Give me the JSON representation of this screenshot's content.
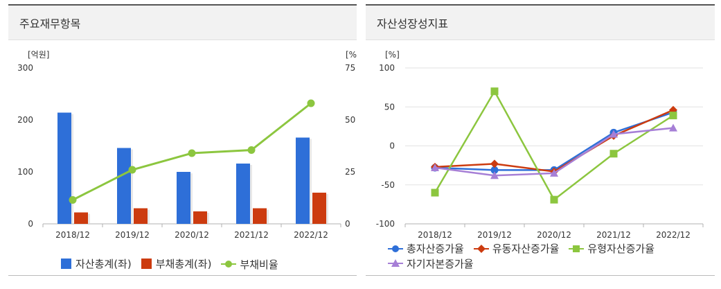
{
  "left_panel": {
    "title": "주요재무항목"
  },
  "right_panel": {
    "title": "자산성장성지표"
  },
  "chart_data": [
    {
      "type": "bar",
      "categories": [
        "2018/12",
        "2019/12",
        "2020/12",
        "2021/12",
        "2022/12"
      ],
      "y_left_unit": "[억원]",
      "y_right_unit": "[%]",
      "ylim_left": [
        0,
        300
      ],
      "ylim_right": [
        0,
        75
      ],
      "y_left_ticks": [
        "0",
        "100",
        "200",
        "300"
      ],
      "y_right_ticks": [
        "0",
        "25",
        "50",
        "75"
      ],
      "series": [
        {
          "name": "자산총계(좌)",
          "kind": "bar",
          "axis": "left",
          "color": "#2e6fd8",
          "values": [
            214,
            146,
            100,
            116,
            166
          ]
        },
        {
          "name": "부채총계(좌)",
          "kind": "bar",
          "axis": "left",
          "color": "#cc3b0f",
          "values": [
            22,
            30,
            24,
            30,
            60
          ]
        },
        {
          "name": "부채비율",
          "kind": "line",
          "axis": "right",
          "color": "#8cc63f",
          "marker": "circle",
          "values": [
            11.5,
            26,
            34,
            35.5,
            58
          ]
        }
      ],
      "legend_position": "bottom",
      "grid": false
    },
    {
      "type": "line",
      "categories": [
        "2018/12",
        "2019/12",
        "2020/12",
        "2021/12",
        "2022/12"
      ],
      "y_unit": "[%]",
      "ylim": [
        -100,
        100
      ],
      "y_ticks": [
        "100",
        "50",
        "0",
        "-50",
        "-100"
      ],
      "series": [
        {
          "name": "총자산증가율",
          "color": "#2e6fd8",
          "marker": "circle",
          "values": [
            -28,
            -31,
            -31,
            17,
            43
          ]
        },
        {
          "name": "유동자산증가율",
          "color": "#cc3b0f",
          "marker": "diamond",
          "values": [
            -27,
            -23,
            -33,
            13,
            46
          ]
        },
        {
          "name": "유형자산증가율",
          "color": "#8cc63f",
          "marker": "square",
          "values": [
            -60,
            70,
            -69,
            -10,
            39
          ]
        },
        {
          "name": "자기자본증가율",
          "color": "#a67fd6",
          "marker": "triangle",
          "values": [
            -28,
            -38,
            -35,
            15,
            23
          ]
        }
      ],
      "legend_position": "bottom",
      "grid": true
    }
  ]
}
